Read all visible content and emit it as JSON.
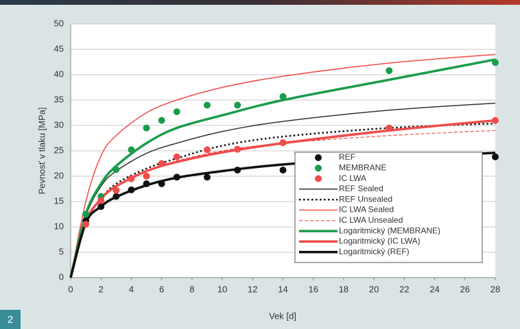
{
  "figure_number": "2",
  "chart_data": {
    "type": "combo",
    "xlabel": "Vek [d]",
    "ylabel": "Pevnosť v tlaku [MPa]",
    "xlim": [
      0,
      28
    ],
    "xticks": [
      0,
      2,
      4,
      6,
      8,
      10,
      12,
      14,
      16,
      18,
      20,
      22,
      24,
      26,
      28
    ],
    "ylim": [
      0,
      50
    ],
    "yticks": [
      0,
      5,
      10,
      15,
      20,
      25,
      30,
      35,
      40,
      45,
      50
    ],
    "grid": true,
    "legend": "lower-right",
    "series": [
      {
        "name": "REF",
        "kind": "scatter",
        "color": "#111111",
        "x": [
          1,
          2,
          3,
          4,
          5,
          6,
          7,
          9,
          11,
          14,
          28
        ],
        "values": [
          11.2,
          14,
          16,
          17.3,
          18.5,
          18.5,
          19.8,
          19.8,
          21.2,
          21.2,
          23.8
        ]
      },
      {
        "name": "MEMBRANE",
        "kind": "scatter",
        "color": "#1a9c4a",
        "x": [
          1,
          2,
          3,
          4,
          5,
          6,
          7,
          9,
          11,
          14,
          21,
          28
        ],
        "values": [
          12.5,
          16,
          21.3,
          25.2,
          29.5,
          31,
          32.7,
          34,
          34,
          35.7,
          40.8,
          42.4
        ]
      },
      {
        "name": "IC LWA",
        "kind": "scatter",
        "color": "#f04b4b",
        "x": [
          1,
          2,
          3,
          4,
          5,
          6,
          7,
          9,
          11,
          14,
          21,
          28
        ],
        "values": [
          10.5,
          15.2,
          17.2,
          19.5,
          20,
          22.5,
          23.8,
          25.2,
          25.3,
          26.6,
          29.5,
          31
        ]
      },
      {
        "name": "REF Sealed",
        "kind": "line",
        "color": "#333333",
        "width": 1.5,
        "x": [
          0,
          1,
          2,
          3,
          5,
          7,
          10,
          14,
          21,
          28
        ],
        "values": [
          0,
          12,
          18,
          21,
          24.5,
          26.5,
          28.8,
          30.8,
          33,
          34.4
        ]
      },
      {
        "name": "REF Unsealed",
        "kind": "line",
        "color": "#111111",
        "width": 2.5,
        "dash": "dotted",
        "x": [
          0,
          1,
          2,
          3,
          5,
          7,
          10,
          14,
          21,
          28
        ],
        "values": [
          0,
          11,
          15.5,
          18.5,
          21.5,
          23.5,
          26,
          27.8,
          29.5,
          30.4
        ]
      },
      {
        "name": "IC LWA Sealed",
        "kind": "line",
        "color": "#f04b4b",
        "width": 1.5,
        "x": [
          0,
          1,
          2,
          3,
          5,
          7,
          10,
          14,
          21,
          28
        ],
        "values": [
          0,
          15,
          24,
          28,
          32.5,
          35,
          37.5,
          39.7,
          42.3,
          44
        ]
      },
      {
        "name": "IC LWA Unsealed",
        "kind": "line",
        "color": "#f04b4b",
        "width": 1.2,
        "dash": "dashed",
        "x": [
          0,
          1,
          2,
          3,
          5,
          7,
          10,
          14,
          21,
          28
        ],
        "values": [
          0,
          10.5,
          15.5,
          18,
          21,
          23,
          25,
          26.5,
          28,
          29
        ]
      },
      {
        "name": "Logaritmický (MEMBRANE)",
        "kind": "line",
        "color": "#1a9c4a",
        "width": 3.5,
        "x": [
          0,
          1,
          2,
          3,
          5,
          7,
          10,
          14,
          21,
          28
        ],
        "values": [
          0,
          12.5,
          18.5,
          22,
          26.5,
          29.5,
          32,
          35,
          39,
          43
        ]
      },
      {
        "name": "Logaritmický (IC LWA)",
        "kind": "line",
        "color": "#f04b4b",
        "width": 3.5,
        "x": [
          0,
          1,
          2,
          3,
          5,
          7,
          10,
          14,
          21,
          28
        ],
        "values": [
          0,
          11,
          15.5,
          18,
          21,
          22.8,
          24.7,
          26.5,
          29,
          31
        ]
      },
      {
        "name": "Logaritmický (REF)",
        "kind": "line",
        "color": "#111111",
        "width": 3.5,
        "x": [
          0,
          1,
          2,
          3,
          5,
          7,
          10,
          14,
          21,
          28
        ],
        "values": [
          0,
          10.8,
          14,
          15.9,
          18.2,
          19.7,
          21,
          22.3,
          23.6,
          24.6
        ]
      }
    ]
  }
}
